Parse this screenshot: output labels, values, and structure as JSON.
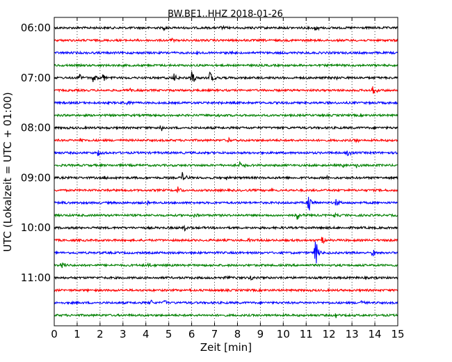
{
  "chart_data": {
    "type": "line",
    "title": "BW.BE1..HHZ 2018-01-26",
    "xlabel": "Zeit  [min]",
    "ylabel": "UTC (Lokalzeit = UTC + 01:00)",
    "xlim": [
      0,
      15
    ],
    "x_ticks": [
      "0",
      "1",
      "2",
      "3",
      "4",
      "5",
      "6",
      "7",
      "8",
      "9",
      "10",
      "11",
      "12",
      "13",
      "14",
      "15"
    ],
    "y_ticks": [
      {
        "label": "06:00",
        "row": 0
      },
      {
        "label": "07:00",
        "row": 4
      },
      {
        "label": "08:00",
        "row": 8
      },
      {
        "label": "09:00",
        "row": 12
      },
      {
        "label": "10:00",
        "row": 16
      },
      {
        "label": "11:00",
        "row": 20
      }
    ],
    "grid": "vertical dotted at each minute",
    "row_colors": [
      "#000000",
      "#ff0000",
      "#0000ff",
      "#008000"
    ],
    "traces": [
      {
        "start": "06:00",
        "color": "#000000",
        "events": [
          {
            "t": 4.8,
            "amp": 0.25
          },
          {
            "t": 7.3,
            "amp": 0.2
          },
          {
            "t": 8.6,
            "amp": 0.2
          },
          {
            "t": 11.4,
            "amp": 0.35
          }
        ]
      },
      {
        "start": "06:15",
        "color": "#ff0000",
        "events": [
          {
            "t": 5.1,
            "amp": 0.25
          }
        ]
      },
      {
        "start": "06:30",
        "color": "#0000ff",
        "events": [
          {
            "t": 6.2,
            "amp": 0.2
          },
          {
            "t": 7.7,
            "amp": 0.2
          }
        ]
      },
      {
        "start": "06:45",
        "color": "#008000",
        "events": []
      },
      {
        "start": "07:00",
        "color": "#000000",
        "events": [
          {
            "t": 1.1,
            "amp": 0.5
          },
          {
            "t": 1.7,
            "amp": 0.5
          },
          {
            "t": 2.1,
            "amp": 0.55
          },
          {
            "t": 5.2,
            "amp": 0.6
          },
          {
            "t": 6.0,
            "amp": 1.0
          },
          {
            "t": 6.8,
            "amp": 0.7
          },
          {
            "t": 12.2,
            "amp": 0.25
          }
        ]
      },
      {
        "start": "07:15",
        "color": "#ff0000",
        "events": [
          {
            "t": 3.3,
            "amp": 0.2
          },
          {
            "t": 13.9,
            "amp": 0.55
          }
        ]
      },
      {
        "start": "07:30",
        "color": "#0000ff",
        "events": [
          {
            "t": 3.2,
            "amp": 0.25
          },
          {
            "t": 7.2,
            "amp": 0.2
          }
        ]
      },
      {
        "start": "07:45",
        "color": "#008000",
        "events": [
          {
            "t": 7.1,
            "amp": 0.2
          }
        ]
      },
      {
        "start": "08:00",
        "color": "#000000",
        "events": [
          {
            "t": 4.6,
            "amp": 0.55
          }
        ]
      },
      {
        "start": "08:15",
        "color": "#ff0000",
        "events": [
          {
            "t": 1.1,
            "amp": 0.3
          },
          {
            "t": 7.6,
            "amp": 0.25
          },
          {
            "t": 13.2,
            "amp": 0.2
          }
        ]
      },
      {
        "start": "08:30",
        "color": "#0000ff",
        "events": [
          {
            "t": 1.9,
            "amp": 0.3
          },
          {
            "t": 12.8,
            "amp": 0.3
          }
        ]
      },
      {
        "start": "08:45",
        "color": "#008000",
        "events": [
          {
            "t": 8.1,
            "amp": 0.4
          },
          {
            "t": 12.6,
            "amp": 0.25
          },
          {
            "t": 13.2,
            "amp": 0.3
          }
        ]
      },
      {
        "start": "09:00",
        "color": "#000000",
        "events": [
          {
            "t": 5.6,
            "amp": 0.6
          },
          {
            "t": 2.2,
            "amp": 0.2
          },
          {
            "t": 7.5,
            "amp": 0.2
          },
          {
            "t": 11.9,
            "amp": 0.25
          }
        ]
      },
      {
        "start": "09:15",
        "color": "#ff0000",
        "events": [
          {
            "t": 5.4,
            "amp": 0.4
          },
          {
            "t": 2.6,
            "amp": 0.2
          },
          {
            "t": 9.5,
            "amp": 0.2
          }
        ]
      },
      {
        "start": "09:30",
        "color": "#0000ff",
        "events": [
          {
            "t": 11.1,
            "amp": 1.1
          },
          {
            "t": 12.3,
            "amp": 0.5
          },
          {
            "t": 0.3,
            "amp": 0.2
          },
          {
            "t": 4.1,
            "amp": 0.2
          }
        ]
      },
      {
        "start": "09:45",
        "color": "#008000",
        "events": [
          {
            "t": 10.6,
            "amp": 0.5
          },
          {
            "t": 6.1,
            "amp": 0.2
          },
          {
            "t": 12.2,
            "amp": 0.2
          }
        ]
      },
      {
        "start": "10:00",
        "color": "#000000",
        "events": [
          {
            "t": 5.7,
            "amp": 0.3
          }
        ]
      },
      {
        "start": "10:15",
        "color": "#ff0000",
        "events": [
          {
            "t": 11.7,
            "amp": 0.6
          },
          {
            "t": 8.5,
            "amp": 0.2
          }
        ]
      },
      {
        "start": "10:30",
        "color": "#0000ff",
        "events": [
          {
            "t": 11.4,
            "amp": 1.6
          },
          {
            "t": 13.9,
            "amp": 0.5
          }
        ]
      },
      {
        "start": "10:45",
        "color": "#008000",
        "events": [
          {
            "t": 0.3,
            "amp": 0.55
          },
          {
            "t": 4.1,
            "amp": 0.25
          }
        ]
      },
      {
        "start": "11:00",
        "color": "#000000",
        "events": [
          {
            "t": 8.6,
            "amp": 0.3
          },
          {
            "t": 7.5,
            "amp": 0.2
          }
        ]
      },
      {
        "start": "11:15",
        "color": "#ff0000",
        "events": [
          {
            "t": 5.8,
            "amp": 0.2
          }
        ]
      },
      {
        "start": "11:30",
        "color": "#0000ff",
        "events": [
          {
            "t": 4.2,
            "amp": 0.35
          },
          {
            "t": 4.8,
            "amp": 0.35
          },
          {
            "t": 13.4,
            "amp": 0.3
          }
        ]
      },
      {
        "start": "11:45",
        "color": "#008000",
        "events": [
          {
            "t": 12.3,
            "amp": 0.35
          }
        ]
      }
    ]
  }
}
